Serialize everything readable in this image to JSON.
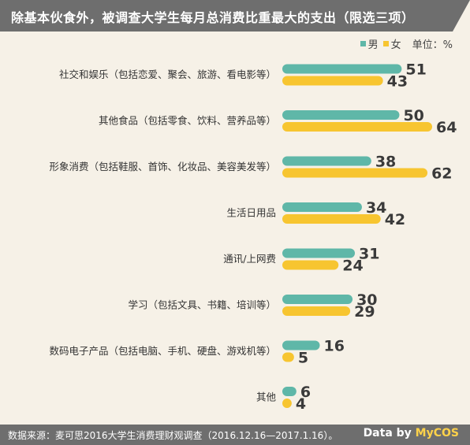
{
  "title": "除基本伙食外，被调查大学生每月总消费比重最大的支出（限选三项）",
  "legend": {
    "male": "男",
    "female": "女",
    "unit": "单位：%"
  },
  "colors": {
    "male": "#5fb7a8",
    "female": "#f7c530",
    "title_bg": "#6e6e6e",
    "background": "#f6f1e7"
  },
  "chart_data": {
    "type": "bar",
    "orientation": "horizontal",
    "categories": [
      "社交和娱乐（包括恋爱、聚会、旅游、看电影等）",
      "其他食品（包括零食、饮料、营养品等）",
      "形象消费（包括鞋服、首饰、化妆品、美容美发等）",
      "生活日用品",
      "通讯/上网费",
      "学习（包括文具、书籍、培训等）",
      "数码电子产品（包括电脑、手机、硬盘、游戏机等）",
      "其他"
    ],
    "series": [
      {
        "name": "男",
        "values": [
          51,
          50,
          38,
          34,
          31,
          30,
          16,
          6
        ]
      },
      {
        "name": "女",
        "values": [
          43,
          64,
          62,
          42,
          24,
          29,
          5,
          4
        ]
      }
    ],
    "unit": "%",
    "xlim": [
      0,
      64
    ],
    "grid": false,
    "legend_position": "top-right"
  },
  "footer": {
    "source": "数据来源：麦可思2016大学生消费理财观调查（2016.12.16—2017.1.16）。",
    "brand_prefix": "Data by ",
    "brand_logo": "MyCOS"
  }
}
